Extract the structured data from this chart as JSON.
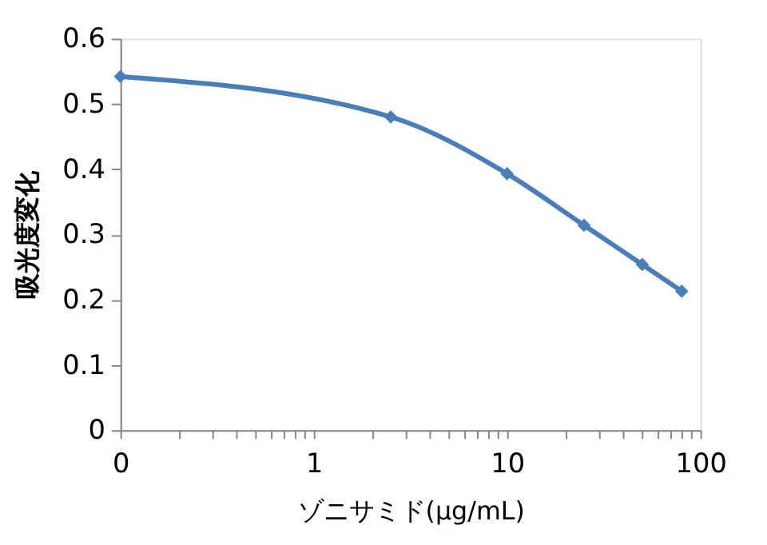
{
  "chart_data": {
    "type": "line",
    "xlabel": "ゾニサミド(μg/mL)",
    "ylabel": "吸光度変化",
    "x": [
      0.1,
      2.5,
      10,
      25,
      50,
      80
    ],
    "series": [
      {
        "color": "#4a7ebb",
        "values": [
          0.542,
          0.48,
          0.393,
          0.314,
          0.254,
          0.213
        ]
      }
    ],
    "log": "x",
    "xlim": [
      0.1,
      100
    ],
    "xticks": [
      {
        "value": 0.1,
        "label": "0"
      },
      {
        "value": 0.2,
        "label": null
      },
      {
        "value": 0.3,
        "label": null
      },
      {
        "value": 0.4,
        "label": null
      },
      {
        "value": 0.5,
        "label": null
      },
      {
        "value": 0.6,
        "label": null
      },
      {
        "value": 0.7,
        "label": null
      },
      {
        "value": 0.8,
        "label": null
      },
      {
        "value": 0.9,
        "label": null
      },
      1,
      {
        "value": 2,
        "label": null
      },
      {
        "value": 3,
        "label": null
      },
      {
        "value": 4,
        "label": null
      },
      {
        "value": 5,
        "label": null
      },
      {
        "value": 6,
        "label": null
      },
      {
        "value": 7,
        "label": null
      },
      {
        "value": 8,
        "label": null
      },
      {
        "value": 9,
        "label": null
      },
      10,
      {
        "value": 20,
        "label": null
      },
      {
        "value": 30,
        "label": null
      },
      {
        "value": 40,
        "label": null
      },
      {
        "value": 50,
        "label": null
      },
      {
        "value": 60,
        "label": null
      },
      {
        "value": 70,
        "label": null
      },
      {
        "value": 80,
        "label": null
      },
      {
        "value": 90,
        "label": null
      },
      100
    ],
    "ylim": [
      0,
      0.6
    ],
    "yticks": [
      0,
      0.1,
      0.2,
      0.3,
      0.4,
      0.5,
      0.6
    ],
    "grid": false,
    "marker": "diamond",
    "line_style": "solid"
  }
}
